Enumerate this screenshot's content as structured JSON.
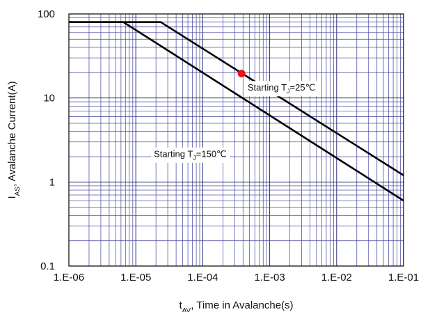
{
  "chart_data": {
    "type": "line",
    "title": "",
    "xlabel": "t_AV, Time in Avalanche(s)",
    "xlabel_parts": {
      "main": "t",
      "sub": "AV",
      "rest": ", Time in Avalanche(s)"
    },
    "ylabel": "I_AS, Avalanche Current(A)",
    "ylabel_parts": {
      "main": "I",
      "sub": "AS",
      "rest": ", Avalanche Current(A)"
    },
    "x_scale": "log",
    "y_scale": "log",
    "xlim": [
      1e-06,
      0.1
    ],
    "ylim": [
      0.1,
      100
    ],
    "grid": true,
    "x_ticks": [
      {
        "value": 1e-06,
        "label": "1.E-06"
      },
      {
        "value": 1e-05,
        "label": "1.E-05"
      },
      {
        "value": 0.0001,
        "label": "1.E-04"
      },
      {
        "value": 0.001,
        "label": "1.E-03"
      },
      {
        "value": 0.01,
        "label": "1.E-02"
      },
      {
        "value": 0.1,
        "label": "1.E-01"
      }
    ],
    "y_ticks": [
      {
        "value": 100,
        "label": "100"
      },
      {
        "value": 10,
        "label": "10"
      },
      {
        "value": 1,
        "label": "1"
      },
      {
        "value": 0.1,
        "label": "0.1"
      }
    ],
    "series": [
      {
        "name": "Starting T_J=25℃",
        "points": [
          [
            1e-06,
            80
          ],
          [
            2.35e-05,
            80
          ],
          [
            0.1,
            1.2
          ]
        ]
      },
      {
        "name": "Starting T_J=150℃",
        "points": [
          [
            1e-06,
            80
          ],
          [
            6.5e-06,
            80
          ],
          [
            0.1,
            0.6
          ]
        ]
      }
    ],
    "annotations": [
      {
        "text": "Starting T",
        "sub": "J",
        "suffix": "=25℃",
        "x": 0.0015,
        "y": 13
      },
      {
        "text": "Starting T",
        "sub": "J",
        "suffix": "=150℃",
        "x": 6.5e-05,
        "y": 2.1
      }
    ],
    "marker": {
      "x": 0.00038,
      "y": 19.5,
      "color": "#e8131b"
    },
    "colors": {
      "line": "#000000",
      "grid": "#2a2a6e",
      "marker": "#e8131b"
    }
  }
}
